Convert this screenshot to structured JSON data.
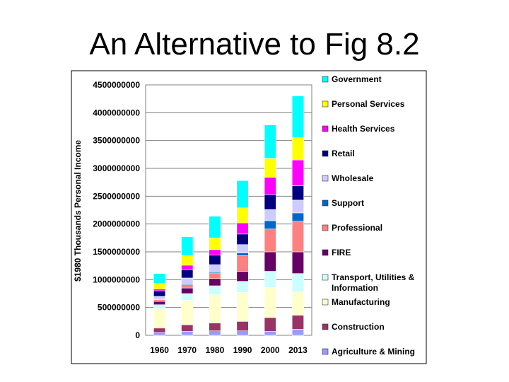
{
  "slide": {
    "title": "An Alternative to Fig 8.2"
  },
  "chart_data": {
    "type": "bar",
    "stacked": true,
    "ylabel": "$1980 Thousands Personal Income",
    "xlabel": "",
    "ylim": [
      0,
      4500000000
    ],
    "yticks": [
      "0",
      "500000000",
      "1000000000",
      "1500000000",
      "2000000000",
      "2500000000",
      "3000000000",
      "3500000000",
      "4000000000",
      "4500000000"
    ],
    "grid": true,
    "legend_position": "right",
    "categories": [
      "1960",
      "1970",
      "1980",
      "1990",
      "2000",
      "2013"
    ],
    "series": [
      {
        "name": "Agriculture & Mining",
        "color": "#9999FF",
        "values": [
          50000000,
          70000000,
          80000000,
          80000000,
          70000000,
          110000000
        ]
      },
      {
        "name": "Construction",
        "color": "#993366",
        "values": [
          80000000,
          120000000,
          140000000,
          170000000,
          250000000,
          250000000
        ]
      },
      {
        "name": "Manufacturing",
        "color": "#FFFFCC",
        "values": [
          350000000,
          440000000,
          510000000,
          520000000,
          540000000,
          420000000
        ]
      },
      {
        "name": "Transport, Utilities & Information",
        "color": "#CCFFFF",
        "values": [
          70000000,
          120000000,
          160000000,
          200000000,
          290000000,
          330000000
        ]
      },
      {
        "name": "FIRE",
        "color": "#660066",
        "values": [
          60000000,
          100000000,
          130000000,
          180000000,
          350000000,
          390000000
        ]
      },
      {
        "name": "Professional",
        "color": "#FF8080",
        "values": [
          30000000,
          60000000,
          100000000,
          280000000,
          410000000,
          550000000
        ]
      },
      {
        "name": "Support",
        "color": "#0066CC",
        "values": [
          10000000,
          20000000,
          20000000,
          50000000,
          150000000,
          150000000
        ]
      },
      {
        "name": "Wholesale",
        "color": "#CCCCFF",
        "values": [
          50000000,
          100000000,
          130000000,
          150000000,
          200000000,
          230000000
        ]
      },
      {
        "name": "Retail",
        "color": "#000080",
        "values": [
          100000000,
          150000000,
          170000000,
          190000000,
          270000000,
          260000000
        ]
      },
      {
        "name": "Health Services",
        "color": "#FF00FF",
        "values": [
          30000000,
          80000000,
          100000000,
          200000000,
          310000000,
          460000000
        ]
      },
      {
        "name": "Personal Services",
        "color": "#FFFF00",
        "values": [
          100000000,
          170000000,
          210000000,
          270000000,
          340000000,
          400000000
        ]
      },
      {
        "name": "Government",
        "color": "#00FFFF",
        "values": [
          180000000,
          340000000,
          390000000,
          490000000,
          600000000,
          750000000
        ]
      }
    ]
  }
}
